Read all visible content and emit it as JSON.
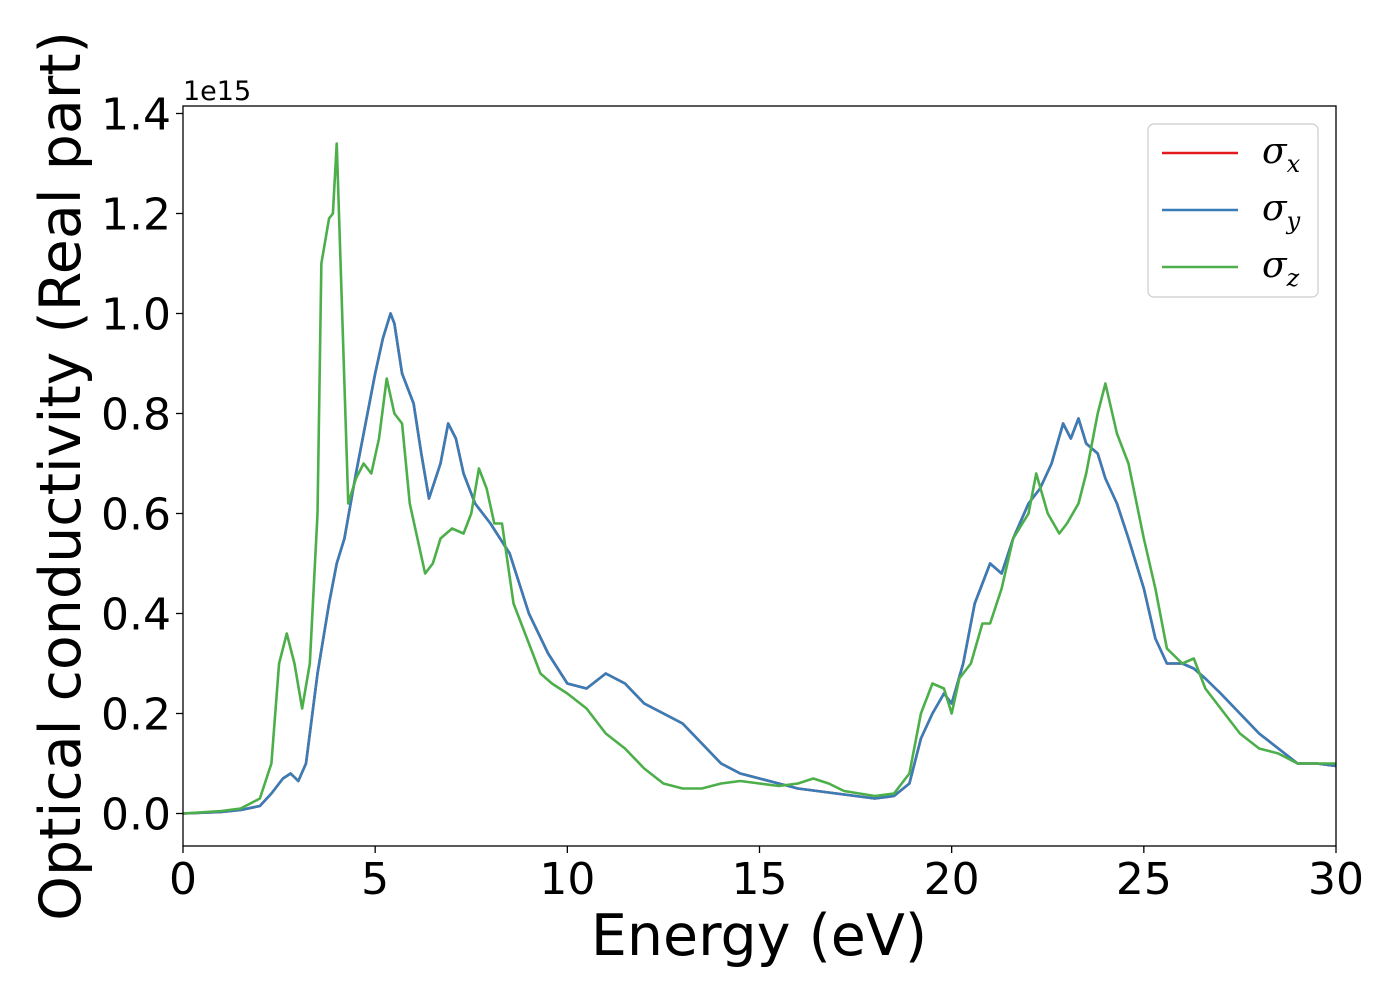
{
  "chart_data": {
    "type": "line",
    "xlabel": "Energy (eV)",
    "ylabel": "Optical conductivity (Real part)",
    "y_offset_label": "1e15",
    "xlim": [
      0,
      30
    ],
    "ylim": [
      -0.065,
      1.415
    ],
    "x_ticks": [
      0,
      5,
      10,
      15,
      20,
      25,
      30
    ],
    "y_ticks": [
      0.0,
      0.2,
      0.4,
      0.6,
      0.8,
      1.0,
      1.2,
      1.4
    ],
    "x_tick_labels": [
      "0",
      "5",
      "10",
      "15",
      "20",
      "25",
      "30"
    ],
    "y_tick_labels": [
      "0.0",
      "0.2",
      "0.4",
      "0.6",
      "0.8",
      "1.0",
      "1.2",
      "1.4"
    ],
    "grid": false,
    "legend_position": "top-right",
    "series": [
      {
        "name": "σx",
        "base": "σ",
        "sub": "x",
        "color": "#e41a1c",
        "x": [
          0,
          1,
          1.5,
          2,
          2.3,
          2.6,
          2.8,
          3.0,
          3.2,
          3.5,
          3.8,
          4.0,
          4.2,
          4.5,
          4.8,
          5.0,
          5.2,
          5.4,
          5.5,
          5.7,
          6.0,
          6.2,
          6.4,
          6.7,
          6.9,
          7.1,
          7.3,
          7.6,
          8.0,
          8.5,
          9.0,
          9.5,
          10.0,
          10.5,
          11.0,
          11.5,
          12.0,
          12.5,
          13.0,
          13.5,
          14.0,
          14.5,
          15.0,
          15.5,
          16.0,
          16.5,
          17.0,
          17.5,
          18.0,
          18.5,
          18.9,
          19.2,
          19.5,
          19.8,
          20.0,
          20.3,
          20.6,
          21.0,
          21.3,
          21.6,
          22.0,
          22.3,
          22.6,
          22.9,
          23.1,
          23.3,
          23.5,
          23.8,
          24.0,
          24.3,
          24.6,
          25.0,
          25.3,
          25.6,
          26.0,
          26.3,
          26.6,
          27.0,
          27.5,
          28.0,
          28.5,
          29.0,
          29.5,
          30.0
        ],
        "y": [
          0,
          0.003,
          0.007,
          0.015,
          0.04,
          0.07,
          0.08,
          0.065,
          0.1,
          0.28,
          0.42,
          0.5,
          0.55,
          0.68,
          0.8,
          0.88,
          0.95,
          1.0,
          0.98,
          0.88,
          0.82,
          0.72,
          0.63,
          0.7,
          0.78,
          0.75,
          0.68,
          0.62,
          0.58,
          0.52,
          0.4,
          0.32,
          0.26,
          0.25,
          0.28,
          0.26,
          0.22,
          0.2,
          0.18,
          0.14,
          0.1,
          0.08,
          0.07,
          0.06,
          0.05,
          0.045,
          0.04,
          0.035,
          0.03,
          0.035,
          0.06,
          0.15,
          0.2,
          0.24,
          0.22,
          0.3,
          0.42,
          0.5,
          0.48,
          0.55,
          0.62,
          0.65,
          0.7,
          0.78,
          0.75,
          0.79,
          0.74,
          0.72,
          0.67,
          0.62,
          0.55,
          0.45,
          0.35,
          0.3,
          0.3,
          0.29,
          0.27,
          0.24,
          0.2,
          0.16,
          0.13,
          0.1,
          0.1,
          0.095
        ]
      },
      {
        "name": "σy",
        "base": "σ",
        "sub": "y",
        "color": "#377eb8",
        "x": [
          0,
          1,
          1.5,
          2,
          2.3,
          2.6,
          2.8,
          3.0,
          3.2,
          3.5,
          3.8,
          4.0,
          4.2,
          4.5,
          4.8,
          5.0,
          5.2,
          5.4,
          5.5,
          5.7,
          6.0,
          6.2,
          6.4,
          6.7,
          6.9,
          7.1,
          7.3,
          7.6,
          8.0,
          8.5,
          9.0,
          9.5,
          10.0,
          10.5,
          11.0,
          11.5,
          12.0,
          12.5,
          13.0,
          13.5,
          14.0,
          14.5,
          15.0,
          15.5,
          16.0,
          16.5,
          17.0,
          17.5,
          18.0,
          18.5,
          18.9,
          19.2,
          19.5,
          19.8,
          20.0,
          20.3,
          20.6,
          21.0,
          21.3,
          21.6,
          22.0,
          22.3,
          22.6,
          22.9,
          23.1,
          23.3,
          23.5,
          23.8,
          24.0,
          24.3,
          24.6,
          25.0,
          25.3,
          25.6,
          26.0,
          26.3,
          26.6,
          27.0,
          27.5,
          28.0,
          28.5,
          29.0,
          29.5,
          30.0
        ],
        "y": [
          0,
          0.003,
          0.007,
          0.015,
          0.04,
          0.07,
          0.08,
          0.065,
          0.1,
          0.28,
          0.42,
          0.5,
          0.55,
          0.68,
          0.8,
          0.88,
          0.95,
          1.0,
          0.98,
          0.88,
          0.82,
          0.72,
          0.63,
          0.7,
          0.78,
          0.75,
          0.68,
          0.62,
          0.58,
          0.52,
          0.4,
          0.32,
          0.26,
          0.25,
          0.28,
          0.26,
          0.22,
          0.2,
          0.18,
          0.14,
          0.1,
          0.08,
          0.07,
          0.06,
          0.05,
          0.045,
          0.04,
          0.035,
          0.03,
          0.035,
          0.06,
          0.15,
          0.2,
          0.24,
          0.22,
          0.3,
          0.42,
          0.5,
          0.48,
          0.55,
          0.62,
          0.65,
          0.7,
          0.78,
          0.75,
          0.79,
          0.74,
          0.72,
          0.67,
          0.62,
          0.55,
          0.45,
          0.35,
          0.3,
          0.3,
          0.29,
          0.27,
          0.24,
          0.2,
          0.16,
          0.13,
          0.1,
          0.1,
          0.095
        ]
      },
      {
        "name": "σz",
        "base": "σ",
        "sub": "z",
        "color": "#4daf4a",
        "x": [
          0,
          1,
          1.5,
          2,
          2.3,
          2.5,
          2.7,
          2.9,
          3.1,
          3.3,
          3.5,
          3.6,
          3.8,
          3.9,
          4.0,
          4.1,
          4.3,
          4.5,
          4.7,
          4.9,
          5.1,
          5.3,
          5.5,
          5.7,
          5.9,
          6.1,
          6.3,
          6.5,
          6.7,
          7.0,
          7.3,
          7.5,
          7.7,
          7.9,
          8.1,
          8.3,
          8.6,
          9.0,
          9.3,
          9.6,
          10.0,
          10.5,
          11.0,
          11.5,
          12.0,
          12.5,
          13.0,
          13.5,
          14.0,
          14.5,
          15.0,
          15.5,
          16.0,
          16.4,
          16.8,
          17.2,
          17.6,
          18.0,
          18.5,
          18.9,
          19.2,
          19.5,
          19.8,
          20.0,
          20.2,
          20.5,
          20.8,
          21.0,
          21.3,
          21.6,
          22.0,
          22.2,
          22.5,
          22.8,
          23.0,
          23.3,
          23.5,
          23.8,
          24.0,
          24.3,
          24.6,
          25.0,
          25.3,
          25.6,
          26.0,
          26.3,
          26.6,
          27.0,
          27.5,
          28.0,
          28.5,
          29.0,
          29.5,
          30.0
        ],
        "y": [
          0,
          0.005,
          0.01,
          0.03,
          0.1,
          0.3,
          0.36,
          0.3,
          0.21,
          0.3,
          0.6,
          1.1,
          1.19,
          1.2,
          1.34,
          1.1,
          0.62,
          0.67,
          0.7,
          0.68,
          0.75,
          0.87,
          0.8,
          0.78,
          0.62,
          0.55,
          0.48,
          0.5,
          0.55,
          0.57,
          0.56,
          0.6,
          0.69,
          0.65,
          0.58,
          0.58,
          0.42,
          0.34,
          0.28,
          0.26,
          0.24,
          0.21,
          0.16,
          0.13,
          0.09,
          0.06,
          0.05,
          0.05,
          0.06,
          0.065,
          0.06,
          0.055,
          0.06,
          0.07,
          0.06,
          0.045,
          0.04,
          0.035,
          0.04,
          0.08,
          0.2,
          0.26,
          0.25,
          0.2,
          0.27,
          0.3,
          0.38,
          0.38,
          0.45,
          0.55,
          0.6,
          0.68,
          0.6,
          0.56,
          0.58,
          0.62,
          0.68,
          0.8,
          0.86,
          0.76,
          0.7,
          0.55,
          0.45,
          0.33,
          0.3,
          0.31,
          0.25,
          0.21,
          0.16,
          0.13,
          0.12,
          0.1,
          0.1,
          0.1
        ]
      }
    ]
  }
}
